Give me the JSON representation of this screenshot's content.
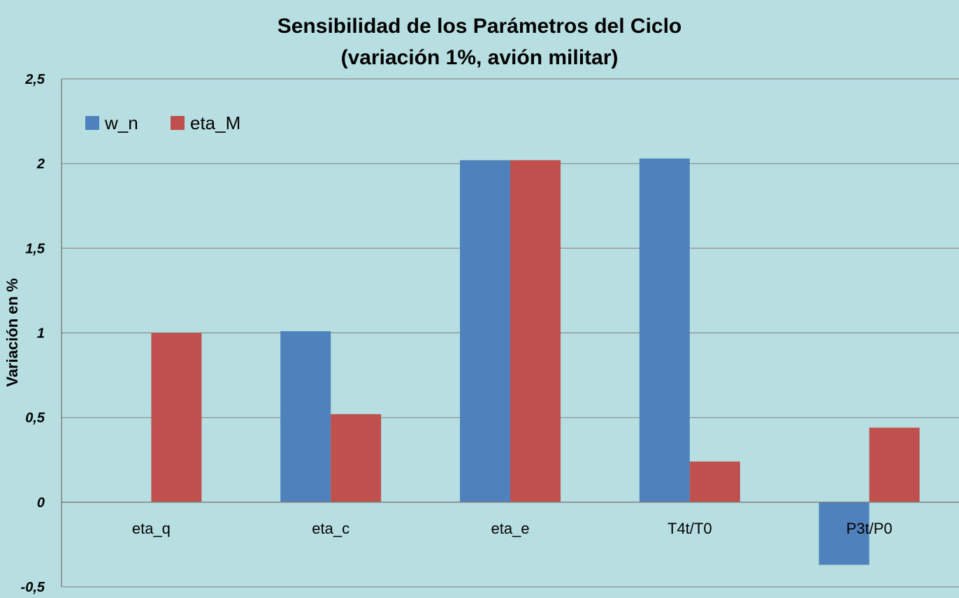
{
  "chart_data": {
    "type": "bar",
    "title_lines": [
      "Sensibilidad de los Parámetros del Ciclo",
      "(variación 1%, avión militar)"
    ],
    "ylabel": "Variación en %",
    "xlabel": "",
    "categories": [
      "eta_q",
      "eta_c",
      "eta_e",
      "T4t/T0",
      "P3t/P0"
    ],
    "series": [
      {
        "name": "w_n",
        "color": "#4f81bd",
        "values": [
          0,
          1.01,
          2.02,
          2.03,
          -0.37
        ]
      },
      {
        "name": "eta_M",
        "color": "#c0504d",
        "values": [
          1.0,
          0.52,
          2.02,
          0.24,
          0.44
        ]
      }
    ],
    "ylim": [
      -0.5,
      2.5
    ],
    "yticks": [
      -0.5,
      0,
      0.5,
      1,
      1.5,
      2,
      2.5
    ],
    "ytick_labels": [
      "-0,5",
      "0",
      "0,5",
      "1",
      "1,5",
      "2",
      "2,5"
    ],
    "grid": true,
    "legend_position": "top-left",
    "colors": {
      "background": "#b7dfe1",
      "gridline": "#8c8c8c",
      "axis": "#808080"
    }
  }
}
